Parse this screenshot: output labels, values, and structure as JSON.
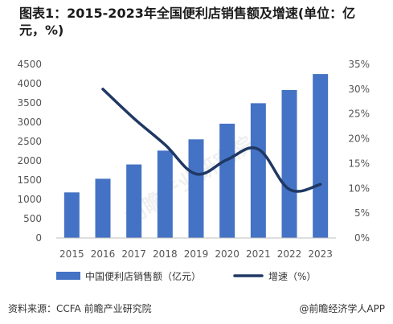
{
  "header": {
    "title": "图表1：2015-2023年全国便利店销售额及增速(单位：亿元，%)"
  },
  "footer": {
    "source": "资料来源：CCFA 前瞻产业研究院",
    "app": "@前瞻经济学人APP"
  },
  "watermark": "前瞻产业研究院",
  "colors": {
    "bar": "#4472C4",
    "line": "#1F3864",
    "axis": "#BFBFBF"
  },
  "chart_data": {
    "type": "bar",
    "categories": [
      "2015",
      "2016",
      "2017",
      "2018",
      "2019",
      "2020",
      "2021",
      "2022",
      "2023"
    ],
    "series": [
      {
        "name": "中国便利店销售额（亿元）",
        "type": "bar",
        "axis": "left",
        "values": [
          1181,
          1535,
          1905,
          2264,
          2556,
          2961,
          3492,
          3834,
          4248
        ]
      },
      {
        "name": "增速（%）",
        "type": "line",
        "axis": "right",
        "values": [
          null,
          30.0,
          24.1,
          18.8,
          12.9,
          15.8,
          17.9,
          9.8,
          10.8
        ]
      }
    ],
    "ylim_left": [
      0,
      4500
    ],
    "yticks_left": [
      "0",
      "500",
      "1000",
      "1500",
      "2000",
      "2500",
      "3000",
      "3500",
      "4000",
      "4500"
    ],
    "ylim_right": [
      0,
      35
    ],
    "yticks_right": [
      "0%",
      "5%",
      "10%",
      "15%",
      "20%",
      "25%",
      "30%",
      "35%"
    ],
    "grid": false,
    "legend": "bottom"
  }
}
